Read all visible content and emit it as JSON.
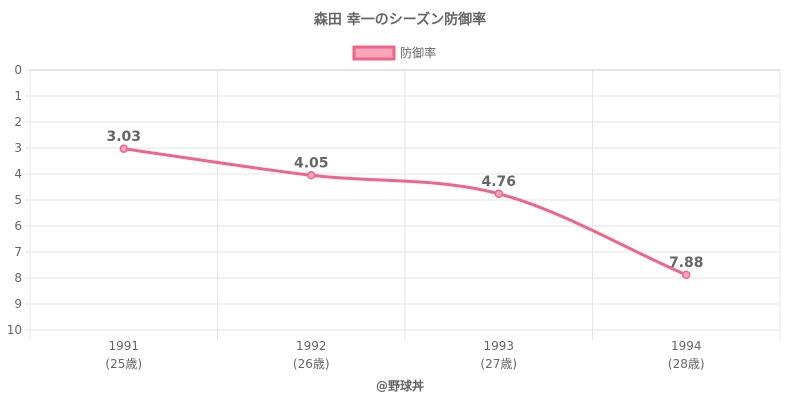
{
  "chart_data": {
    "type": "line",
    "title": "森田 幸一のシーズン防御率",
    "categories": [
      "1991",
      "1992",
      "1993",
      "1994"
    ],
    "category_sublabels": [
      "(25歳)",
      "(26歳)",
      "(27歳)",
      "(28歳)"
    ],
    "series": [
      {
        "name": "防御率",
        "values": [
          3.03,
          4.05,
          4.76,
          7.88
        ],
        "color": "#f0648a"
      }
    ],
    "data_labels": [
      "3.03",
      "4.05",
      "4.76",
      "7.88"
    ],
    "y_ticks": [
      "0",
      "1",
      "2",
      "3",
      "4",
      "5",
      "6",
      "7",
      "8",
      "9",
      "10"
    ],
    "ylim": [
      0,
      10
    ],
    "y_reversed": true,
    "grid": true,
    "legend": "top",
    "credit": "@野球丼"
  }
}
